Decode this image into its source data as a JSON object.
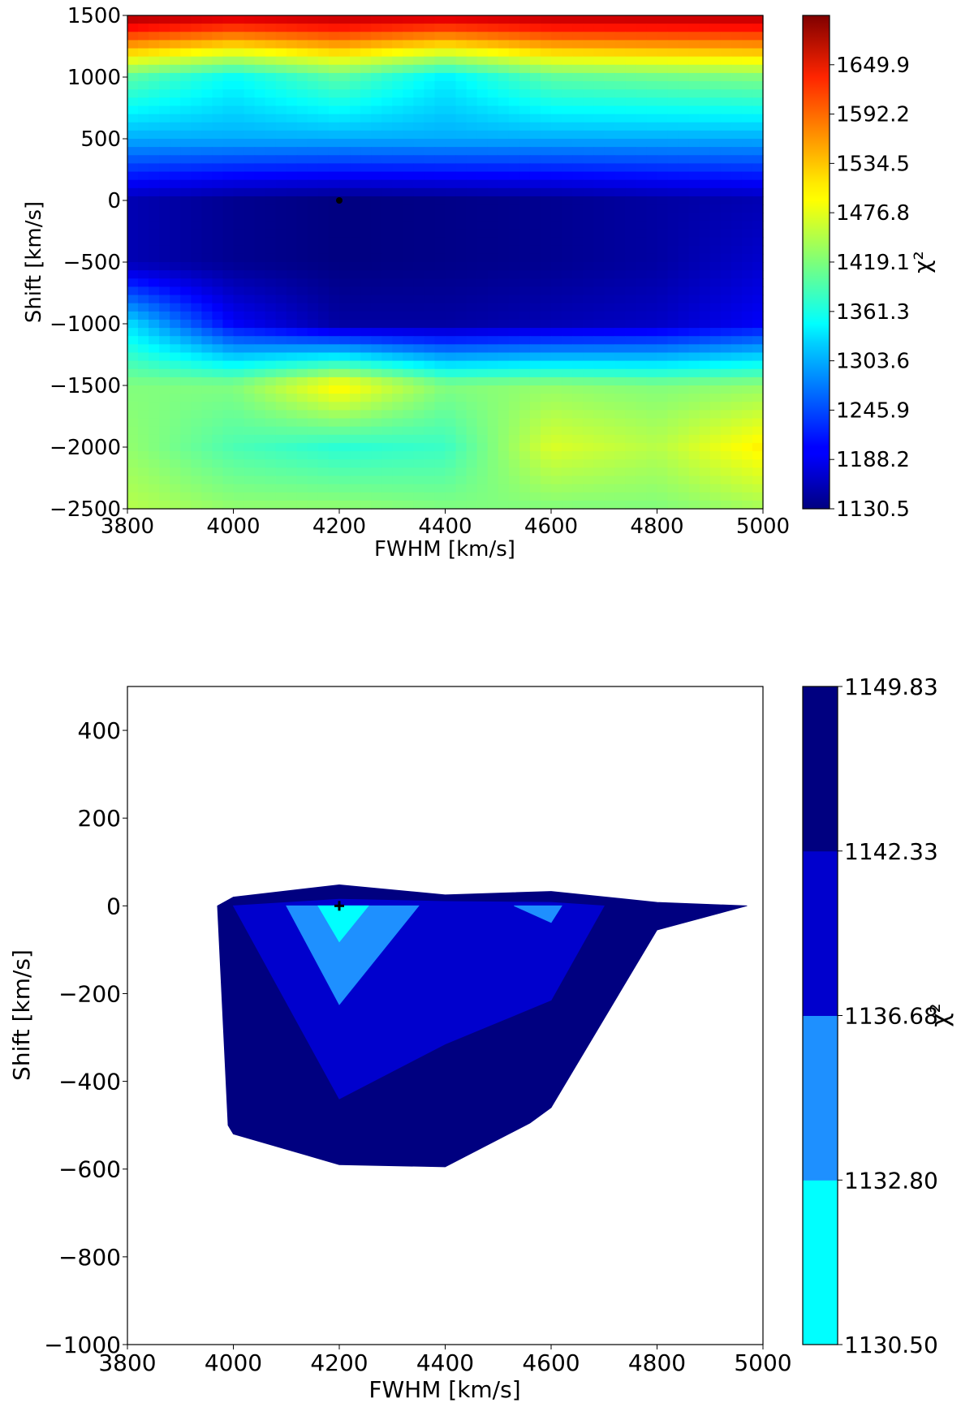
{
  "chart_data": [
    {
      "type": "heatmap",
      "xlabel": "FWHM [km/s]",
      "ylabel": "Shift [km/s]",
      "colorbar_label": "χ²",
      "xlim": [
        3800,
        5000
      ],
      "ylim": [
        -2500,
        1500
      ],
      "xticks": [
        "3800",
        "4000",
        "4200",
        "4400",
        "4600",
        "4800",
        "5000"
      ],
      "yticks": [
        "1500",
        "1000",
        "500",
        "0",
        "−500",
        "−1000",
        "−1500",
        "−2000",
        "−2500"
      ],
      "colormap": "jet",
      "colorbar_range": [
        1130.5,
        1707.6
      ],
      "colorbar_ticks": [
        "1649.9",
        "1592.2",
        "1534.5",
        "1476.8",
        "1419.1",
        "1361.3",
        "1303.6",
        "1245.9",
        "1188.2",
        "1130.5"
      ],
      "best_fit_marker": {
        "x": 4200,
        "y": 0
      },
      "description_values": {
        "fwhm": [
          3800,
          4000,
          4200,
          4400,
          4600,
          4800,
          5000
        ],
        "shift": [
          1500,
          1000,
          500,
          0,
          -500,
          -1000,
          -1500,
          -2000,
          -2500
        ],
        "chi2": [
          [
            1690,
            1670,
            1680,
            1670,
            1680,
            1680,
            1680
          ],
          [
            1400,
            1350,
            1400,
            1340,
            1400,
            1410,
            1420
          ],
          [
            1300,
            1300,
            1300,
            1300,
            1300,
            1300,
            1300
          ],
          [
            1160,
            1140,
            1131,
            1135,
            1140,
            1150,
            1160
          ],
          [
            1160,
            1140,
            1131,
            1135,
            1140,
            1150,
            1175
          ],
          [
            1330,
            1200,
            1150,
            1150,
            1160,
            1170,
            1200
          ],
          [
            1420,
            1420,
            1500,
            1420,
            1430,
            1420,
            1430
          ],
          [
            1430,
            1390,
            1370,
            1380,
            1470,
            1450,
            1500
          ],
          [
            1450,
            1430,
            1430,
            1420,
            1420,
            1420,
            1440
          ]
        ]
      }
    },
    {
      "type": "contour",
      "xlabel": "FWHM [km/s]",
      "ylabel": "Shift [km/s]",
      "colorbar_label": "χ²",
      "xlim": [
        3800,
        5000
      ],
      "ylim": [
        -1000,
        500
      ],
      "xticks": [
        "3800",
        "4000",
        "4200",
        "4400",
        "4600",
        "4800",
        "5000"
      ],
      "yticks": [
        "400",
        "200",
        "0",
        "−200",
        "−400",
        "−600",
        "−800",
        "−1000"
      ],
      "levels": [
        1130.5,
        1132.8,
        1136.68,
        1142.33,
        1149.83
      ],
      "level_colors": [
        "#00ffff",
        "#1e90ff",
        "#0000cd",
        "#000080"
      ],
      "colorbar_ticks": [
        "1149.83",
        "1142.33",
        "1136.68",
        "1132.80",
        "1130.50"
      ],
      "best_fit_marker": {
        "x": 4200,
        "y": 0
      },
      "regions": [
        {
          "level": "1142.33–1149.83",
          "color": "#000080",
          "vertices": [
            [
              3970,
              0
            ],
            [
              4000,
              20
            ],
            [
              4200,
              48
            ],
            [
              4400,
              25
            ],
            [
              4600,
              33
            ],
            [
              4800,
              8
            ],
            [
              4970,
              0
            ],
            [
              4800,
              -55
            ],
            [
              4600,
              -460
            ],
            [
              4560,
              -495
            ],
            [
              4400,
              -595
            ],
            [
              4200,
              -590
            ],
            [
              4000,
              -520
            ],
            [
              3990,
              -500
            ]
          ]
        },
        {
          "level": "1136.68–1142.33",
          "color": "#0000cd",
          "vertices": [
            [
              4000,
              0
            ],
            [
              4200,
              15
            ],
            [
              4400,
              10
            ],
            [
              4600,
              8
            ],
            [
              4700,
              0
            ],
            [
              4600,
              -215
            ],
            [
              4400,
              -315
            ],
            [
              4200,
              -440
            ]
          ]
        },
        {
          "level": "1132.80–1136.68",
          "color": "#1e90ff",
          "vertices": [
            [
              4100,
              0
            ],
            [
              4350,
              0
            ],
            [
              4200,
              -225
            ]
          ]
        },
        {
          "level": "1132.80–1136.68",
          "color": "#1e90ff",
          "vertices": [
            [
              4530,
              0
            ],
            [
              4620,
              0
            ],
            [
              4600,
              -38
            ]
          ]
        },
        {
          "level": "1130.50–1132.80",
          "color": "#00ffff",
          "vertices": [
            [
              4160,
              0
            ],
            [
              4255,
              0
            ],
            [
              4200,
              -82
            ]
          ]
        }
      ]
    }
  ]
}
